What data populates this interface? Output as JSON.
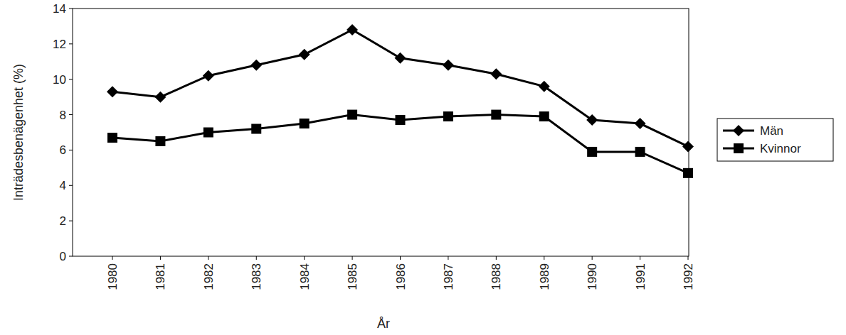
{
  "chart_data": {
    "type": "line",
    "x_label": "År",
    "y_label": "Inträdesbenägenhet (%)",
    "categories": [
      "1980",
      "1981",
      "1982",
      "1983",
      "1984",
      "1985",
      "1986",
      "1987",
      "1988",
      "1989",
      "1990",
      "1991",
      "1992"
    ],
    "series": [
      {
        "name": "Män",
        "color": "#000000",
        "marker": "diamond",
        "values": [
          9.3,
          9.0,
          10.2,
          10.8,
          11.4,
          12.8,
          11.2,
          10.8,
          10.3,
          9.6,
          7.7,
          7.5,
          6.2
        ]
      },
      {
        "name": "Kvinnor",
        "color": "#000000",
        "marker": "square",
        "values": [
          6.7,
          6.5,
          7.0,
          7.2,
          7.5,
          8.0,
          7.7,
          7.9,
          8.0,
          7.9,
          5.9,
          5.9,
          4.7
        ]
      }
    ],
    "ylim": [
      0,
      14
    ],
    "yticks": [
      0,
      2,
      4,
      6,
      8,
      10,
      12,
      14
    ],
    "grid": false,
    "legend": "right"
  }
}
